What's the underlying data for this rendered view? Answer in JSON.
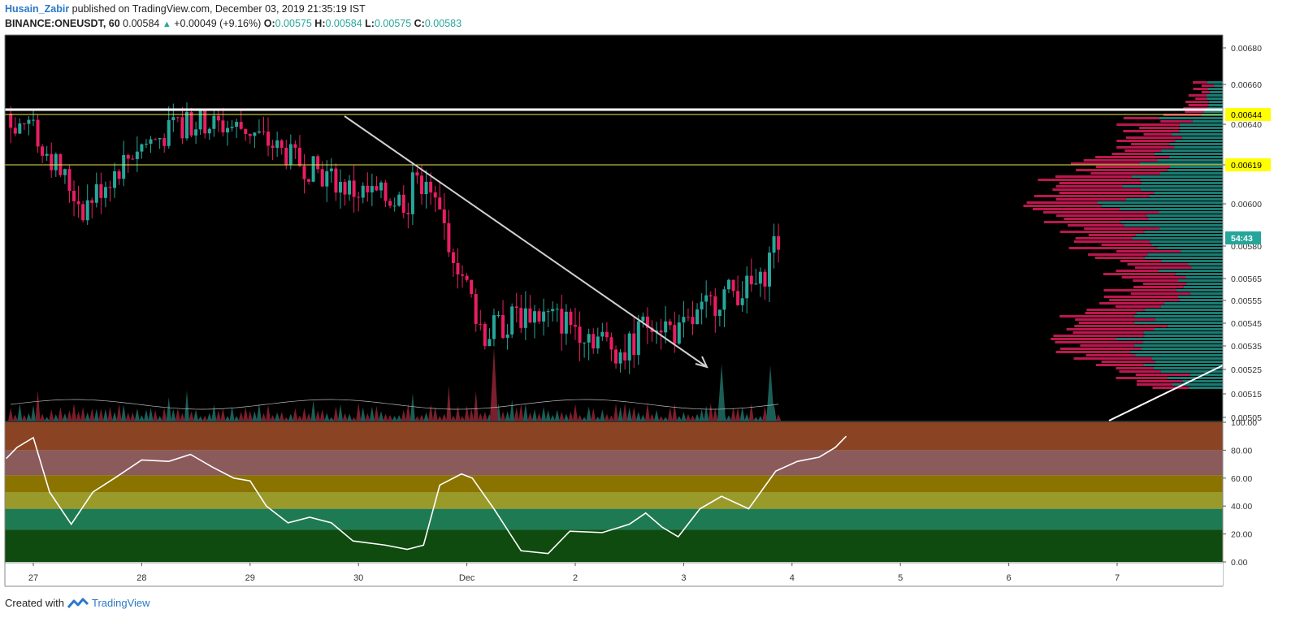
{
  "header": {
    "author": "Husain_Zabir",
    "published_text": " published on TradingView.com, December 03, 2019 21:35:19 IST",
    "symbol": "BINANCE:ONEUSDT, 60",
    "last": "0.00584",
    "change": "+0.00049 (+9.16%)",
    "o_label": "O:",
    "o_value": "0.00575",
    "h_label": "H:",
    "h_value": "0.00584",
    "l_label": "L:",
    "l_value": "0.00575",
    "c_label": "C:",
    "c_value": "0.00583"
  },
  "footer": {
    "created_with": "Created with",
    "brand": "TradingView"
  },
  "colors": {
    "background": "#000000",
    "up": "#26a69a",
    "down": "#e91e63",
    "volume_up": "#1b5e57",
    "volume_down": "#7a1f2b",
    "horizontal_level": "#e8e84a",
    "resistance_line": "#ffffff",
    "trend_line": "#d0d0d0",
    "rsi_line": "#ffffff",
    "price_badge": "#26a69a",
    "level_badge": "#ffff00"
  },
  "chart_data": [
    {
      "type": "candlestick",
      "symbol": "BINANCE:ONEUSDT",
      "interval": "60",
      "x_ticks": [
        "27",
        "28",
        "29",
        "30",
        "Dec",
        "2",
        "3",
        "4",
        "5",
        "6",
        "7"
      ],
      "y_ticks": [
        "0.00680",
        "0.00660",
        "0.00640",
        "0.00619",
        "0.00600",
        "0.00580",
        "0.00565",
        "0.00555",
        "0.00545",
        "0.00535",
        "0.00525",
        "0.00515",
        "0.00505"
      ],
      "level_badges": [
        "0.00644",
        "0.00619"
      ],
      "current_price_badge": "54:43",
      "ohlc_anchors": [
        {
          "x": "27",
          "price": 0.0064
        },
        {
          "x": "27.5",
          "price": 0.00598
        },
        {
          "x": "28",
          "price": 0.00628
        },
        {
          "x": "28.5",
          "price": 0.00641
        },
        {
          "x": "29",
          "price": 0.00638
        },
        {
          "x": "29.5",
          "price": 0.0062
        },
        {
          "x": "30",
          "price": 0.00606
        },
        {
          "x": "30.5",
          "price": 0.00601
        },
        {
          "x": "Dec 0.5",
          "price": 0.0062
        },
        {
          "x": "Dec 0.75",
          "price": 0.006
        },
        {
          "x": "Dec 1.2",
          "price": 0.0054
        },
        {
          "x": "Dec 1.6",
          "price": 0.0055
        },
        {
          "x": "2",
          "price": 0.00545
        },
        {
          "x": "2.5",
          "price": 0.00532
        },
        {
          "x": "2.75",
          "price": 0.00548
        },
        {
          "x": "3",
          "price": 0.0054
        },
        {
          "x": "3.4",
          "price": 0.00558
        },
        {
          "x": "3.75",
          "price": 0.00562
        },
        {
          "x": "3.9",
          "price": 0.00584
        }
      ]
    },
    {
      "type": "line",
      "name": "oscillator",
      "y_ticks": [
        "100.00",
        "80.00",
        "60.00",
        "40.00",
        "20.00",
        "0.00"
      ],
      "ylim": [
        0,
        100
      ],
      "bands": [
        {
          "from": 80,
          "to": 100,
          "color": "#8b4423"
        },
        {
          "from": 62,
          "to": 80,
          "color": "#8b5a5a"
        },
        {
          "from": 50,
          "to": 62,
          "color": "#8b7300"
        },
        {
          "from": 38,
          "to": 50,
          "color": "#9a9a2a"
        },
        {
          "from": 23,
          "to": 38,
          "color": "#1e7a52"
        },
        {
          "from": 0,
          "to": 23,
          "color": "#0f4a0f"
        }
      ],
      "points": [
        [
          0,
          74
        ],
        [
          0.1,
          82
        ],
        [
          0.25,
          89
        ],
        [
          0.4,
          50
        ],
        [
          0.6,
          27
        ],
        [
          0.8,
          50
        ],
        [
          1.0,
          60
        ],
        [
          1.25,
          73
        ],
        [
          1.5,
          72
        ],
        [
          1.7,
          77
        ],
        [
          1.9,
          68
        ],
        [
          2.1,
          60
        ],
        [
          2.25,
          58
        ],
        [
          2.4,
          40
        ],
        [
          2.6,
          28
        ],
        [
          2.8,
          32
        ],
        [
          3.0,
          28
        ],
        [
          3.2,
          15
        ],
        [
          3.5,
          12
        ],
        [
          3.7,
          9
        ],
        [
          3.85,
          12
        ],
        [
          4.0,
          55
        ],
        [
          4.2,
          63
        ],
        [
          4.3,
          60
        ],
        [
          4.5,
          38
        ],
        [
          4.75,
          8
        ],
        [
          5.0,
          6
        ],
        [
          5.2,
          22
        ],
        [
          5.5,
          21
        ],
        [
          5.75,
          27
        ],
        [
          5.9,
          35
        ],
        [
          6.05,
          25
        ],
        [
          6.2,
          18
        ],
        [
          6.4,
          38
        ],
        [
          6.6,
          47
        ],
        [
          6.85,
          38
        ],
        [
          7.1,
          65
        ],
        [
          7.3,
          72
        ],
        [
          7.5,
          75
        ],
        [
          7.65,
          82
        ],
        [
          7.75,
          90
        ]
      ]
    }
  ]
}
